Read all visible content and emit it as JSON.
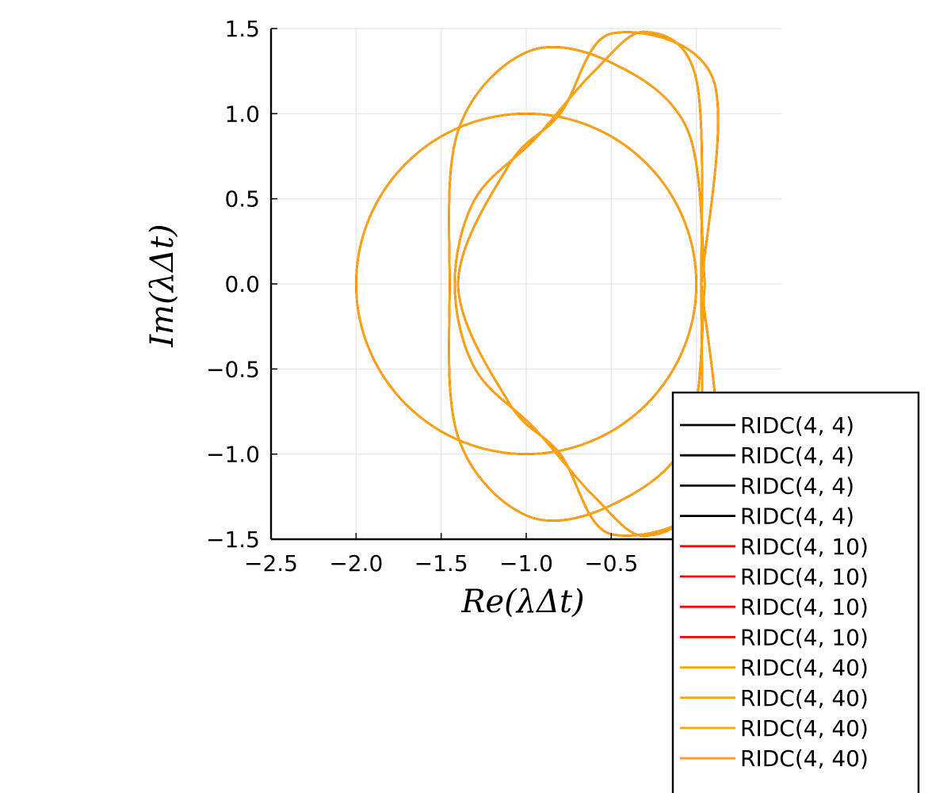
{
  "chart_data": {
    "type": "line",
    "title": "",
    "xlabel": "Re(λΔt)",
    "ylabel": "Im(λΔt)",
    "xlim": [
      -2.5,
      0.5
    ],
    "ylim": [
      -1.5,
      1.5
    ],
    "x_ticks": [
      -2.5,
      -2.0,
      -1.5,
      -1.0,
      -0.5
    ],
    "x_tick_labels": [
      "−2.5",
      "−2.0",
      "−1.5",
      "−1.0",
      "−0.5"
    ],
    "y_ticks": [
      -1.5,
      -1.0,
      -0.5,
      0.0,
      0.5,
      1.0,
      1.5
    ],
    "y_tick_labels": [
      "−1.5",
      "−1.0",
      "−0.5",
      "0.0",
      "0.5",
      "1.0",
      "1.5"
    ],
    "grid": true,
    "legend_position": "bottom-right, outside plot area",
    "series": [
      {
        "name": "RIDC(4, 4)",
        "color": "#000000",
        "curve": "circle centered at (-1, 0) radius 1",
        "x": [
          0.0,
          -0.5,
          -1.0,
          -1.5,
          -2.0,
          -1.5,
          -1.0,
          -0.5,
          0.0
        ],
        "y": [
          0.0,
          0.87,
          1.0,
          0.87,
          0.0,
          -0.87,
          -1.0,
          -0.87,
          0.0
        ]
      },
      {
        "name": "RIDC(4, 4)",
        "color": "#000000",
        "curve": "oval loop",
        "x": [
          0.05,
          -0.05,
          -0.5,
          -1.0,
          -1.4,
          -1.45,
          -1.4,
          -1.0,
          -0.5,
          -0.05,
          0.05
        ],
        "y": [
          0.0,
          0.9,
          1.3,
          1.36,
          0.9,
          0.0,
          -0.9,
          -1.36,
          -1.3,
          -0.9,
          0.0
        ]
      },
      {
        "name": "RIDC(4, 4)",
        "color": "#000000",
        "curve": "lobed loop",
        "x": [
          0.03,
          0.0,
          -0.3,
          -0.6,
          -0.95,
          -1.3,
          -1.42,
          -1.3,
          -0.95,
          -0.6,
          -0.3,
          0.0,
          0.03
        ],
        "y": [
          0.0,
          1.2,
          1.48,
          1.25,
          0.85,
          0.5,
          0.0,
          -0.5,
          -0.85,
          -1.25,
          -1.48,
          -1.2,
          0.0
        ]
      },
      {
        "name": "RIDC(4, 4)",
        "color": "#000000",
        "curve": "lobed loop",
        "x": [
          0.03,
          0.1,
          -0.5,
          -0.8,
          -1.1,
          -1.4,
          -1.1,
          -0.8,
          -0.5,
          0.1,
          0.03
        ],
        "y": [
          0.0,
          1.2,
          1.47,
          1.0,
          0.7,
          0.0,
          -0.7,
          -1.0,
          -1.47,
          -1.2,
          0.0
        ]
      },
      {
        "name": "RIDC(4, 10)",
        "color": "#ff0000",
        "curve": "circle centered at (-1, 0) radius 1",
        "x": [
          0.0,
          -0.5,
          -1.0,
          -1.5,
          -2.0,
          -1.5,
          -1.0,
          -0.5,
          0.0
        ],
        "y": [
          0.0,
          0.87,
          1.0,
          0.87,
          0.0,
          -0.87,
          -1.0,
          -0.87,
          0.0
        ]
      },
      {
        "name": "RIDC(4, 10)",
        "color": "#ff0000",
        "curve": "oval loop",
        "x": [
          0.05,
          -0.05,
          -0.5,
          -1.0,
          -1.4,
          -1.45,
          -1.4,
          -1.0,
          -0.5,
          -0.05,
          0.05
        ],
        "y": [
          0.0,
          0.9,
          1.3,
          1.36,
          0.9,
          0.0,
          -0.9,
          -1.36,
          -1.3,
          -0.9,
          0.0
        ]
      },
      {
        "name": "RIDC(4, 10)",
        "color": "#ff0000",
        "curve": "lobed loop",
        "x": [
          0.03,
          0.0,
          -0.3,
          -0.6,
          -0.95,
          -1.3,
          -1.42,
          -1.3,
          -0.95,
          -0.6,
          -0.3,
          0.0,
          0.03
        ],
        "y": [
          0.0,
          1.2,
          1.48,
          1.25,
          0.85,
          0.5,
          0.0,
          -0.5,
          -0.85,
          -1.25,
          -1.48,
          -1.2,
          0.0
        ]
      },
      {
        "name": "RIDC(4, 10)",
        "color": "#ff0000",
        "curve": "lobed loop",
        "x": [
          0.03,
          0.1,
          -0.5,
          -0.8,
          -1.1,
          -1.4,
          -1.1,
          -0.8,
          -0.5,
          0.1,
          0.03
        ],
        "y": [
          0.0,
          1.2,
          1.47,
          1.0,
          0.7,
          0.0,
          -0.7,
          -1.0,
          -1.47,
          -1.2,
          0.0
        ]
      },
      {
        "name": "RIDC(4, 40)",
        "color": "#ffa500",
        "curve": "circle centered at (-1, 0) radius 1",
        "x": [
          0.0,
          -0.5,
          -1.0,
          -1.5,
          -2.0,
          -1.5,
          -1.0,
          -0.5,
          0.0
        ],
        "y": [
          0.0,
          0.87,
          1.0,
          0.87,
          0.0,
          -0.87,
          -1.0,
          -0.87,
          0.0
        ]
      },
      {
        "name": "RIDC(4, 40)",
        "color": "#ffa500",
        "curve": "oval loop",
        "x": [
          0.05,
          -0.05,
          -0.5,
          -1.0,
          -1.4,
          -1.45,
          -1.4,
          -1.0,
          -0.5,
          -0.05,
          0.05
        ],
        "y": [
          0.0,
          0.9,
          1.3,
          1.36,
          0.9,
          0.0,
          -0.9,
          -1.36,
          -1.3,
          -0.9,
          0.0
        ]
      },
      {
        "name": "RIDC(4, 40)",
        "color": "#ffa500",
        "curve": "lobed loop",
        "x": [
          0.03,
          0.0,
          -0.3,
          -0.6,
          -0.95,
          -1.3,
          -1.42,
          -1.3,
          -0.95,
          -0.6,
          -0.3,
          0.0,
          0.03
        ],
        "y": [
          0.0,
          1.2,
          1.48,
          1.25,
          0.85,
          0.5,
          0.0,
          -0.5,
          -0.85,
          -1.25,
          -1.48,
          -1.2,
          0.0
        ]
      },
      {
        "name": "RIDC(4, 40)",
        "color": "#ffa500",
        "curve": "lobed loop",
        "x": [
          0.03,
          0.1,
          -0.5,
          -0.8,
          -1.1,
          -1.4,
          -1.1,
          -0.8,
          -0.5,
          0.1,
          0.03
        ],
        "y": [
          0.0,
          1.2,
          1.47,
          1.0,
          0.7,
          0.0,
          -0.7,
          -1.0,
          -1.47,
          -1.2,
          0.0
        ]
      }
    ]
  }
}
